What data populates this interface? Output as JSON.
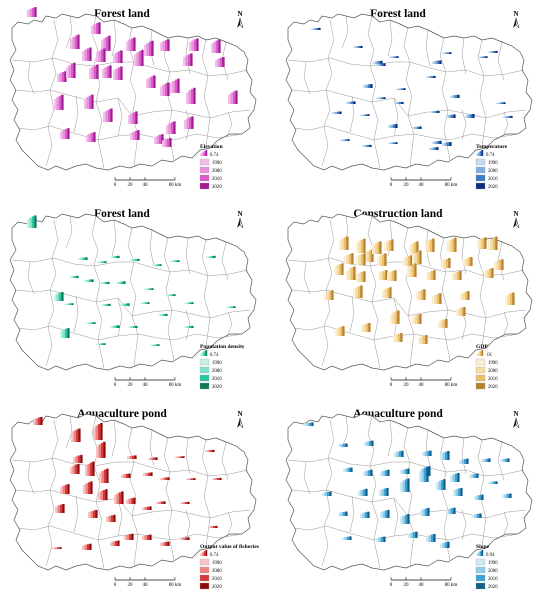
{
  "panels": [
    {
      "id": "p1",
      "title": "Forest land",
      "legend": {
        "title": "Elevation",
        "max": "0.74",
        "years": [
          "1990",
          "2000",
          "2010",
          "2020"
        ],
        "colors": [
          "#f3bfe9",
          "#ea8fdc",
          "#d85ccb",
          "#a21b94"
        ]
      },
      "scale": {
        "ticks": [
          "0",
          "20",
          "40",
          "80 km"
        ]
      },
      "north": "N",
      "bars": [
        [
          27,
          17,
          0.55
        ],
        [
          91,
          34,
          0.65
        ],
        [
          70,
          49,
          0.8
        ],
        [
          101,
          51,
          0.85
        ],
        [
          126,
          51,
          0.75
        ],
        [
          144,
          56,
          0.85
        ],
        [
          160,
          51,
          0.65
        ],
        [
          189,
          51,
          0.7
        ],
        [
          211,
          53,
          0.75
        ],
        [
          82,
          61,
          0.75
        ],
        [
          96,
          62,
          0.75
        ],
        [
          113,
          63,
          0.7
        ],
        [
          134,
          66,
          0.9
        ],
        [
          183,
          66,
          0.7
        ],
        [
          215,
          67,
          0.55
        ],
        [
          57,
          82,
          0.6
        ],
        [
          66,
          78,
          0.85
        ],
        [
          89,
          79,
          0.8
        ],
        [
          102,
          78,
          0.7
        ],
        [
          113,
          80,
          0.75
        ],
        [
          146,
          88,
          0.7
        ],
        [
          160,
          96,
          0.75
        ],
        [
          170,
          93,
          0.8
        ],
        [
          186,
          104,
          0.9
        ],
        [
          228,
          104,
          0.75
        ],
        [
          54,
          110,
          0.85
        ],
        [
          84,
          109,
          0.8
        ],
        [
          103,
          122,
          0.75
        ],
        [
          128,
          124,
          0.7
        ],
        [
          166,
          134,
          0.7
        ],
        [
          184,
          129,
          0.7
        ],
        [
          60,
          139,
          0.6
        ],
        [
          86,
          142,
          0.55
        ],
        [
          130,
          140,
          0.55
        ],
        [
          154,
          144,
          0.55
        ],
        [
          162,
          147,
          0.5
        ]
      ]
    },
    {
      "id": "p2",
      "title": "Forest land",
      "legend": {
        "title": "Temperature",
        "max": "0.74",
        "years": [
          "1990",
          "2000",
          "2010",
          "2020"
        ],
        "colors": [
          "#c6dbef",
          "#7fb2e0",
          "#3d7cc9",
          "#0d2f7f"
        ]
      },
      "scale": {
        "ticks": [
          "0",
          "20",
          "40",
          "80 km"
        ]
      },
      "north": "N",
      "bars": [
        [
          35,
          30,
          0.12
        ],
        [
          77,
          48,
          0.12
        ],
        [
          97,
          64,
          0.18
        ],
        [
          100,
          66,
          0.15
        ],
        [
          113,
          58,
          0.1
        ],
        [
          156,
          64,
          0.2
        ],
        [
          166,
          54,
          0.1
        ],
        [
          202,
          58,
          0.1
        ],
        [
          212,
          53,
          0.12
        ],
        [
          87,
          88,
          0.22
        ],
        [
          120,
          90,
          0.1
        ],
        [
          150,
          78,
          0.12
        ],
        [
          174,
          98,
          0.18
        ],
        [
          220,
          104,
          0.1
        ],
        [
          70,
          104,
          0.15
        ],
        [
          100,
          99,
          0.1
        ],
        [
          118,
          104,
          0.12
        ],
        [
          154,
          113,
          0.12
        ],
        [
          170,
          118,
          0.2
        ],
        [
          189,
          118,
          0.22
        ],
        [
          56,
          114,
          0.14
        ],
        [
          84,
          116,
          0.1
        ],
        [
          112,
          128,
          0.22
        ],
        [
          136,
          129,
          0.14
        ],
        [
          156,
          144,
          0.18
        ],
        [
          166,
          146,
          0.22
        ],
        [
          64,
          141,
          0.1
        ],
        [
          86,
          147,
          0.12
        ],
        [
          112,
          144,
          0.1
        ],
        [
          153,
          150,
          0.16
        ],
        [
          227,
          118,
          0.12
        ]
      ]
    },
    {
      "id": "p3",
      "title": "Forest land",
      "legend": {
        "title": "Population density",
        "max": "0.74",
        "years": [
          "1990",
          "2000",
          "2010",
          "2020"
        ],
        "colors": [
          "#c7f2e6",
          "#7ee5cc",
          "#27c7a0",
          "#0d7a5c"
        ]
      },
      "scale": {
        "ticks": [
          "0",
          "20",
          "40",
          "80 km"
        ]
      },
      "north": "N",
      "bars": [
        [
          27,
          28,
          0.7
        ],
        [
          54,
          101,
          0.5
        ],
        [
          60,
          138,
          0.55
        ],
        [
          78,
          60,
          0.15
        ],
        [
          97,
          63,
          0.1
        ],
        [
          110,
          58,
          0.12
        ],
        [
          130,
          61,
          0.12
        ],
        [
          152,
          66,
          0.1
        ],
        [
          170,
          62,
          0.1
        ],
        [
          206,
          58,
          0.12
        ],
        [
          69,
          78,
          0.12
        ],
        [
          84,
          82,
          0.15
        ],
        [
          100,
          84,
          0.12
        ],
        [
          116,
          84,
          0.15
        ],
        [
          144,
          90,
          0.1
        ],
        [
          166,
          96,
          0.1
        ],
        [
          184,
          104,
          0.1
        ],
        [
          226,
          108,
          0.1
        ],
        [
          64,
          105,
          0.1
        ],
        [
          101,
          106,
          0.12
        ],
        [
          120,
          106,
          0.15
        ],
        [
          140,
          104,
          0.1
        ],
        [
          158,
          116,
          0.12
        ],
        [
          184,
          128,
          0.12
        ],
        [
          86,
          124,
          0.1
        ],
        [
          110,
          128,
          0.15
        ],
        [
          128,
          128,
          0.12
        ],
        [
          96,
          145,
          0.1
        ],
        [
          150,
          146,
          0.1
        ]
      ]
    },
    {
      "id": "p4",
      "title": "Construction land",
      "legend": {
        "title": "GDP",
        "max": ".01",
        "years": [
          "1990",
          "2000",
          "2010",
          "2020"
        ],
        "colors": [
          "#fbeed1",
          "#f7dca6",
          "#edbf68",
          "#b8822e"
        ]
      },
      "scale": {
        "ticks": [
          "0",
          "20",
          "40",
          "80 km"
        ]
      },
      "north": "N",
      "bars": [
        [
          63,
          50,
          0.75
        ],
        [
          80,
          53,
          0.8
        ],
        [
          88,
          62,
          0.7
        ],
        [
          96,
          54,
          0.7
        ],
        [
          108,
          51,
          0.65
        ],
        [
          133,
          54,
          0.7
        ],
        [
          149,
          52,
          0.75
        ],
        [
          171,
          52,
          0.8
        ],
        [
          201,
          49,
          0.65
        ],
        [
          212,
          50,
          0.75
        ],
        [
          68,
          64,
          0.6
        ],
        [
          80,
          65,
          0.65
        ],
        [
          101,
          66,
          0.7
        ],
        [
          127,
          66,
          0.6
        ],
        [
          136,
          64,
          0.75
        ],
        [
          165,
          68,
          0.55
        ],
        [
          187,
          66,
          0.5
        ],
        [
          218,
          70,
          0.6
        ],
        [
          58,
          75,
          0.65
        ],
        [
          70,
          80,
          0.75
        ],
        [
          80,
          82,
          0.6
        ],
        [
          102,
          80,
          0.55
        ],
        [
          111,
          81,
          0.6
        ],
        [
          131,
          77,
          0.75
        ],
        [
          150,
          80,
          0.55
        ],
        [
          176,
          80,
          0.5
        ],
        [
          208,
          78,
          0.55
        ],
        [
          48,
          100,
          0.55
        ],
        [
          77,
          98,
          0.7
        ],
        [
          106,
          98,
          0.6
        ],
        [
          140,
          100,
          0.6
        ],
        [
          156,
          104,
          0.6
        ],
        [
          184,
          100,
          0.5
        ],
        [
          229,
          105,
          0.7
        ],
        [
          59,
          136,
          0.55
        ],
        [
          85,
          132,
          0.5
        ],
        [
          114,
          124,
          0.75
        ],
        [
          136,
          124,
          0.55
        ],
        [
          162,
          128,
          0.5
        ],
        [
          180,
          116,
          0.5
        ],
        [
          117,
          142,
          0.5
        ],
        [
          142,
          144,
          0.5
        ]
      ]
    },
    {
      "id": "p5",
      "title": "Aquaculture pond",
      "legend": {
        "title": "Output value of fisheries",
        "max": "0.74",
        "years": [
          "1990",
          "2000",
          "2010",
          "2020"
        ],
        "colors": [
          "#f7c4c4",
          "#ee8585",
          "#d93838",
          "#8f0c0c"
        ]
      },
      "scale": {
        "ticks": [
          "0",
          "20",
          "40",
          "80 km"
        ]
      },
      "north": "N",
      "bars": [
        [
          33,
          25,
          0.45
        ],
        [
          93,
          40,
          0.95
        ],
        [
          71,
          42,
          0.75
        ],
        [
          73,
          63,
          0.45
        ],
        [
          96,
          58,
          0.9
        ],
        [
          127,
          59,
          0.2
        ],
        [
          148,
          60,
          0.15
        ],
        [
          175,
          58,
          0.1
        ],
        [
          205,
          52,
          0.12
        ],
        [
          70,
          74,
          0.55
        ],
        [
          85,
          76,
          0.8
        ],
        [
          99,
          83,
          0.8
        ],
        [
          121,
          78,
          0.25
        ],
        [
          143,
          76,
          0.2
        ],
        [
          160,
          80,
          0.15
        ],
        [
          186,
          80,
          0.1
        ],
        [
          212,
          80,
          0.12
        ],
        [
          60,
          94,
          0.55
        ],
        [
          83,
          94,
          0.7
        ],
        [
          98,
          100,
          0.6
        ],
        [
          114,
          104,
          0.7
        ],
        [
          126,
          104,
          0.35
        ],
        [
          142,
          110,
          0.2
        ],
        [
          156,
          104,
          0.15
        ],
        [
          180,
          104,
          0.12
        ],
        [
          55,
          113,
          0.5
        ],
        [
          88,
          118,
          0.45
        ],
        [
          106,
          122,
          0.4
        ],
        [
          124,
          140,
          0.35
        ],
        [
          142,
          140,
          0.3
        ],
        [
          160,
          146,
          0.25
        ],
        [
          180,
          140,
          0.15
        ],
        [
          52,
          149,
          0.1
        ],
        [
          82,
          150,
          0.35
        ],
        [
          110,
          146,
          0.3
        ],
        [
          208,
          128,
          0.12
        ]
      ]
    },
    {
      "id": "p6",
      "title": "Aquaculture pond",
      "legend": {
        "title": "Slope",
        "max": "0.94",
        "years": [
          "1990",
          "2000",
          "2010",
          "2020"
        ],
        "colors": [
          "#cfe9f5",
          "#92cdea",
          "#3ba3d6",
          "#0f5f8a"
        ]
      },
      "scale": {
        "ticks": [
          "0",
          "20",
          "40",
          "80 km"
        ]
      },
      "north": "N",
      "bars": [
        [
          28,
          26,
          0.2
        ],
        [
          62,
          47,
          0.2
        ],
        [
          88,
          46,
          0.3
        ],
        [
          118,
          57,
          0.35
        ],
        [
          146,
          56,
          0.3
        ],
        [
          164,
          60,
          0.5
        ],
        [
          183,
          64,
          0.3
        ],
        [
          205,
          62,
          0.2
        ],
        [
          224,
          62,
          0.2
        ],
        [
          67,
          72,
          0.25
        ],
        [
          87,
          76,
          0.35
        ],
        [
          104,
          76,
          0.35
        ],
        [
          124,
          74,
          0.3
        ],
        [
          145,
          76,
          0.55
        ],
        [
          174,
          82,
          0.5
        ],
        [
          193,
          78,
          0.25
        ],
        [
          212,
          84,
          0.15
        ],
        [
          46,
          96,
          0.25
        ],
        [
          82,
          96,
          0.4
        ],
        [
          103,
          96,
          0.45
        ],
        [
          124,
          92,
          0.75
        ],
        [
          143,
          82,
          0.85
        ],
        [
          160,
          90,
          0.6
        ],
        [
          177,
          96,
          0.45
        ],
        [
          198,
          100,
          0.3
        ],
        [
          226,
          98,
          0.25
        ],
        [
          62,
          116,
          0.25
        ],
        [
          84,
          118,
          0.35
        ],
        [
          104,
          118,
          0.45
        ],
        [
          124,
          124,
          0.55
        ],
        [
          144,
          116,
          0.45
        ],
        [
          170,
          114,
          0.35
        ],
        [
          196,
          118,
          0.25
        ],
        [
          66,
          140,
          0.2
        ],
        [
          100,
          142,
          0.3
        ],
        [
          132,
          138,
          0.35
        ],
        [
          150,
          142,
          0.45
        ],
        [
          164,
          148,
          0.35
        ]
      ]
    }
  ]
}
